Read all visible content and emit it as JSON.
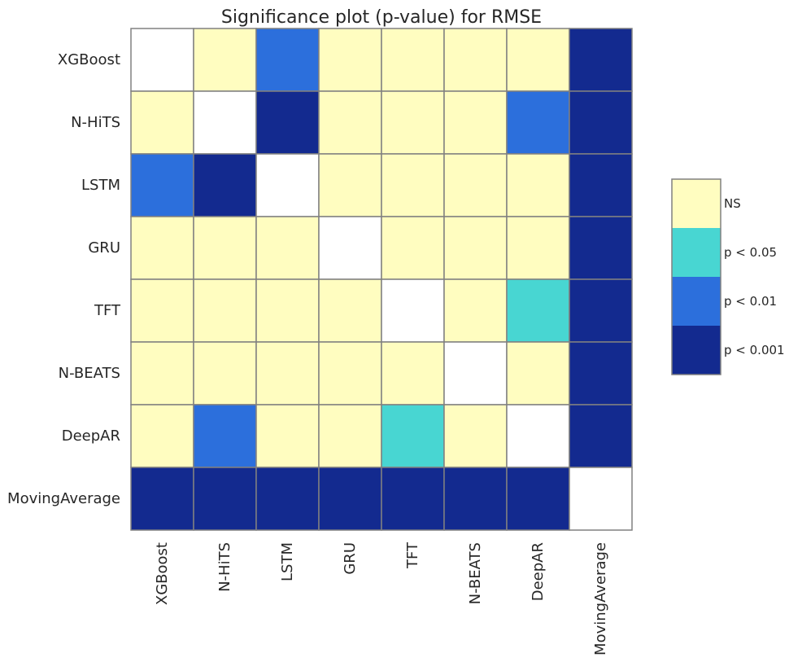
{
  "chart_data": {
    "type": "heatmap",
    "title": "Significance plot (p-value) for RMSE",
    "rows": [
      "XGBoost",
      "N-HiTS",
      "LSTM",
      "GRU",
      "TFT",
      "N-BEATS",
      "DeepAR",
      "MovingAverage"
    ],
    "cols": [
      "XGBoost",
      "N-HiTS",
      "LSTM",
      "GRU",
      "TFT",
      "N-BEATS",
      "DeepAR",
      "MovingAverage"
    ],
    "levels": [
      "none",
      "NS",
      "p < 0.05",
      "p < 0.01",
      "p < 0.001"
    ],
    "matrix": [
      [
        0,
        1,
        3,
        1,
        1,
        1,
        1,
        4
      ],
      [
        1,
        0,
        4,
        1,
        1,
        1,
        3,
        4
      ],
      [
        3,
        4,
        0,
        1,
        1,
        1,
        1,
        4
      ],
      [
        1,
        1,
        1,
        0,
        1,
        1,
        1,
        4
      ],
      [
        1,
        1,
        1,
        1,
        0,
        1,
        2,
        4
      ],
      [
        1,
        1,
        1,
        1,
        1,
        0,
        1,
        4
      ],
      [
        1,
        3,
        1,
        1,
        2,
        1,
        0,
        4
      ],
      [
        4,
        4,
        4,
        4,
        4,
        4,
        4,
        0
      ]
    ],
    "level_colors": [
      "#ffffff",
      "#fffdc0",
      "#48d6d2",
      "#2c6fdc",
      "#132a8f"
    ],
    "legend": {
      "placement": "right",
      "entries": [
        "NS",
        "p < 0.05",
        "p < 0.01",
        "p < 0.001"
      ],
      "colors": [
        "#fffdc0",
        "#48d6d2",
        "#2c6fdc",
        "#132a8f"
      ]
    },
    "grid_color": "#808080"
  }
}
